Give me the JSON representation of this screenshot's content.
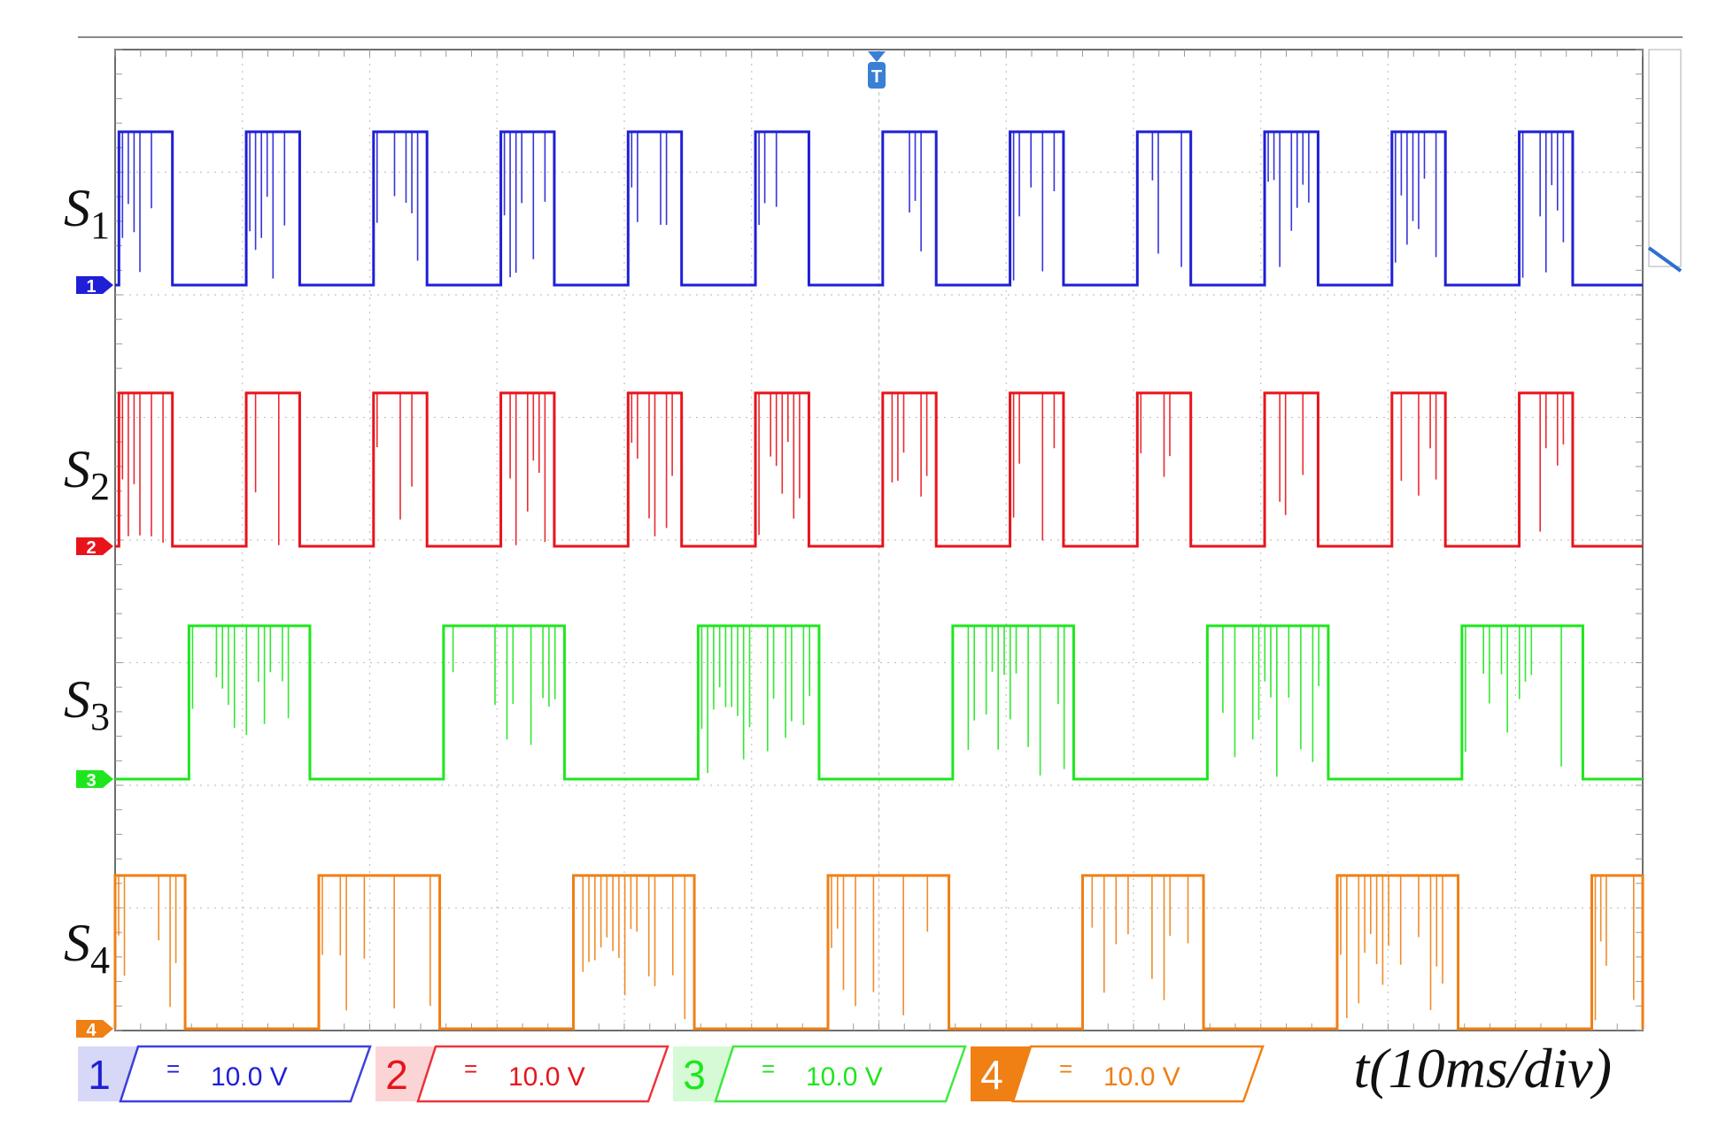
{
  "chart_data": {
    "type": "line",
    "grid": true,
    "divisions": {
      "x": 12,
      "y": 8
    },
    "time_label": "t(10ms/div)",
    "trigger_marker": "T",
    "series": [
      {
        "label": "S",
        "subscript": "1",
        "channel": "1",
        "color": "#1f1fd6",
        "coupling_symbol": "=",
        "scale": "10.0 V",
        "pulse_period_div": 1.0,
        "pulse_width_div": 0.42,
        "first_rise_div": 0.03,
        "level_div": 1.25
      },
      {
        "label": "S",
        "subscript": "2",
        "channel": "2",
        "color": "#e8141c",
        "coupling_symbol": "=",
        "scale": "10.0 V",
        "pulse_period_div": 1.0,
        "pulse_width_div": 0.42,
        "first_rise_div": 0.03,
        "level_div": 1.25
      },
      {
        "label": "S",
        "subscript": "3",
        "channel": "3",
        "color": "#1ee61e",
        "coupling_symbol": "=",
        "scale": "10.0 V",
        "pulse_period_div": 2.0,
        "pulse_width_div": 0.95,
        "first_rise_div": 0.58,
        "level_div": 1.25
      },
      {
        "label": "S",
        "subscript": "4",
        "channel": "4",
        "color": "#f07f14",
        "coupling_symbol": "=",
        "scale": "10.0 V",
        "pulse_period_div": 2.0,
        "pulse_width_div": 0.95,
        "first_rise_div": -0.4,
        "level_div": 1.25
      }
    ]
  }
}
